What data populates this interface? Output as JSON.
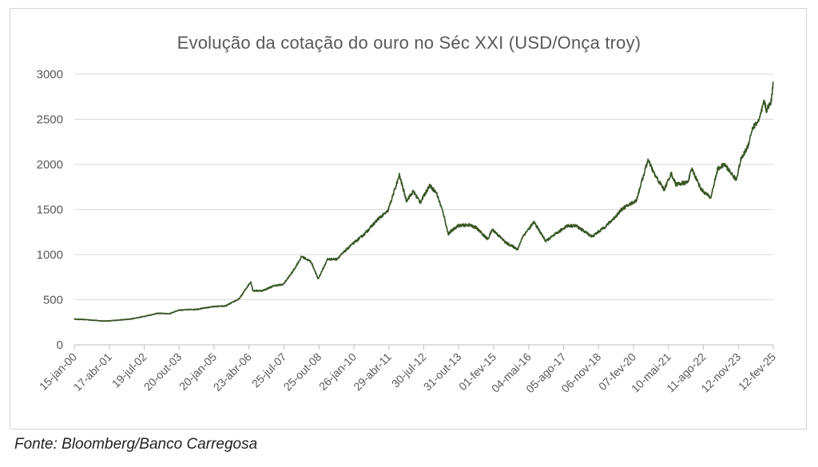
{
  "chart_data": {
    "type": "line",
    "title": "Evolução da cotação do ouro no Séc XXI (USD/Onça troy)",
    "xlabel": "",
    "ylabel": "",
    "ylim": [
      0,
      3000
    ],
    "yticks": [
      0,
      500,
      1000,
      1500,
      2000,
      2500,
      3000
    ],
    "grid": true,
    "line_color": "#375623",
    "x_tick_labels": [
      "15-jan-00",
      "17-abr-01",
      "19-jul-02",
      "20-out-03",
      "20-jan-05",
      "23-abr-06",
      "25-jul-07",
      "25-out-08",
      "26-jan-10",
      "29-abr-11",
      "30-jul-12",
      "31-out-13",
      "01-fev-15",
      "04-mai-16",
      "05-ago-17",
      "06-nov-18",
      "07-fev-20",
      "10-mai-21",
      "11-ago-22",
      "12-nov-23",
      "12-fev-25"
    ],
    "series": [
      {
        "x": [
          "2000-01-15",
          "2000-06",
          "2001-01",
          "2001-04",
          "2001-08",
          "2002-01",
          "2002-07",
          "2003-01",
          "2003-06",
          "2003-10",
          "2004-06",
          "2005-01",
          "2005-06",
          "2005-12",
          "2006-05",
          "2006-06",
          "2006-10",
          "2007-03",
          "2007-07",
          "2007-11",
          "2008-03",
          "2008-07",
          "2008-10",
          "2009-02",
          "2009-06",
          "2009-12",
          "2010-06",
          "2010-12",
          "2011-04",
          "2011-08",
          "2011-09",
          "2011-12",
          "2012-03",
          "2012-06",
          "2012-10",
          "2013-01",
          "2013-04",
          "2013-06",
          "2013-10",
          "2014-03",
          "2014-06",
          "2014-11",
          "2015-01",
          "2015-07",
          "2015-12",
          "2016-02",
          "2016-07",
          "2016-12",
          "2017-06",
          "2017-09",
          "2018-01",
          "2018-08",
          "2019-02",
          "2019-06",
          "2019-09",
          "2020-03",
          "2020-08",
          "2020-11",
          "2021-03",
          "2021-06",
          "2021-08",
          "2022-01",
          "2022-03",
          "2022-07",
          "2022-11",
          "2023-02",
          "2023-05",
          "2023-10",
          "2023-12",
          "2024-03",
          "2024-05",
          "2024-08",
          "2024-10",
          "2024-11",
          "2025-01",
          "2025-02-12"
        ],
        "y": [
          285,
          280,
          265,
          265,
          275,
          285,
          315,
          350,
          345,
          385,
          395,
          425,
          430,
          510,
          700,
          600,
          600,
          655,
          670,
          810,
          980,
          920,
          730,
          950,
          950,
          1100,
          1230,
          1400,
          1480,
          1800,
          1880,
          1600,
          1700,
          1580,
          1770,
          1680,
          1450,
          1230,
          1320,
          1330,
          1300,
          1170,
          1280,
          1130,
          1060,
          1200,
          1360,
          1150,
          1260,
          1320,
          1320,
          1200,
          1320,
          1420,
          1510,
          1600,
          2050,
          1880,
          1720,
          1900,
          1780,
          1800,
          1950,
          1720,
          1630,
          1950,
          2000,
          1830,
          2050,
          2200,
          2400,
          2500,
          2700,
          2600,
          2700,
          2910
        ]
      }
    ]
  },
  "source_note": "Fonte: Bloomberg/Banco Carregosa"
}
